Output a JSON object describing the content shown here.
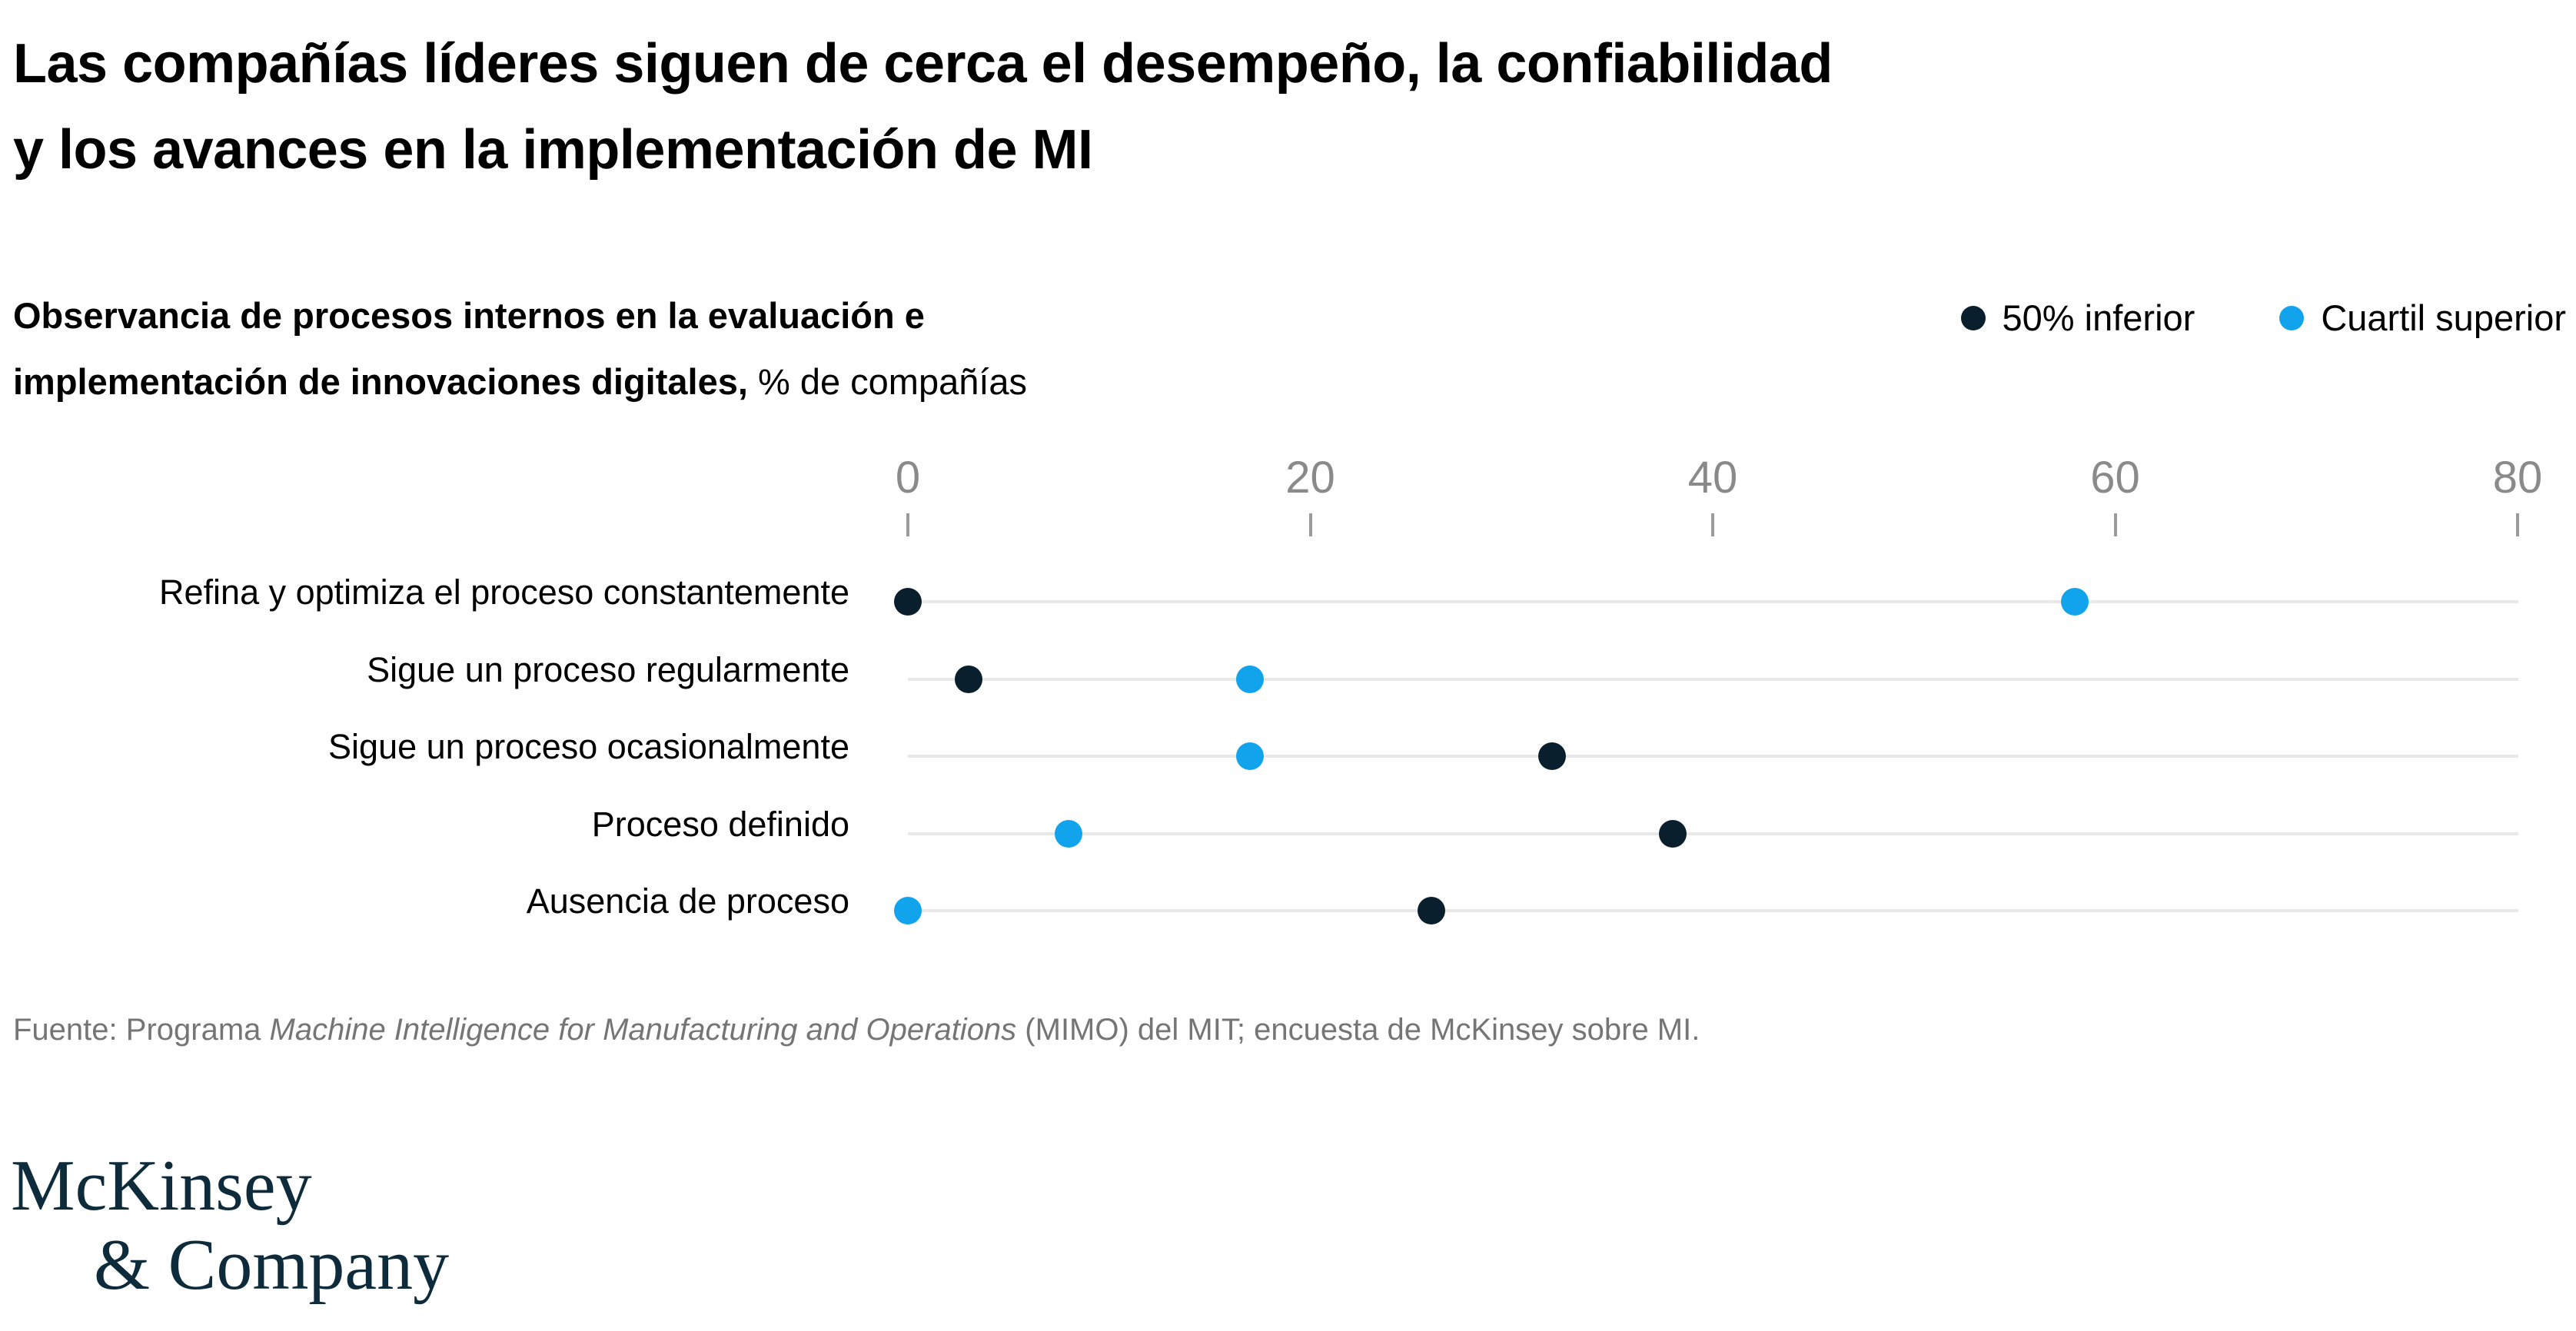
{
  "title": {
    "line1": "Las compañías líderes siguen de cerca el desempeño, la confiabilidad",
    "line2": "y los avances en la implementación de MI"
  },
  "subtitle": {
    "bold_line1": "Observancia de procesos internos en la evaluación e",
    "bold_line2": "implementación de innovaciones digitales,",
    "regular_suffix": " % de compañías"
  },
  "legend": [
    {
      "label": "50% inferior",
      "color": "#0a1f2d"
    },
    {
      "label": "Cuartil superior",
      "color": "#11a3eb"
    }
  ],
  "chart_data": {
    "type": "scatter",
    "title": "Observancia de procesos internos en la evaluación e implementación de innovaciones digitales, % de compañías",
    "categories": [
      "Refina y optimiza el proceso constantemente",
      "Sigue un proceso regularmente",
      "Sigue un proceso ocasionalmente",
      "Proceso definido",
      "Ausencia de proceso"
    ],
    "series": [
      {
        "name": "50% inferior",
        "color": "#0a1f2d",
        "values": [
          0,
          3,
          32,
          38,
          26
        ]
      },
      {
        "name": "Cuartil superior",
        "color": "#11a3eb",
        "values": [
          58,
          17,
          17,
          8,
          0
        ]
      }
    ],
    "x_ticks": [
      0,
      20,
      40,
      60,
      80
    ],
    "xlim": [
      0,
      80
    ],
    "xlabel": "",
    "ylabel": "",
    "grid": "horizontal-row-lines",
    "legend_position": "top-right",
    "colors": {
      "gridline": "#e8e8e8",
      "tick_text": "#8a8a8a",
      "tick_mark": "#9b9b9b"
    }
  },
  "source": {
    "prefix": "Fuente: Programa ",
    "italic": "Machine Intelligence for Manufacturing and Operations",
    "suffix": " (MIMO) del MIT; encuesta de McKinsey sobre MI."
  },
  "logo": {
    "line1": "McKinsey",
    "line2": "& Company"
  }
}
